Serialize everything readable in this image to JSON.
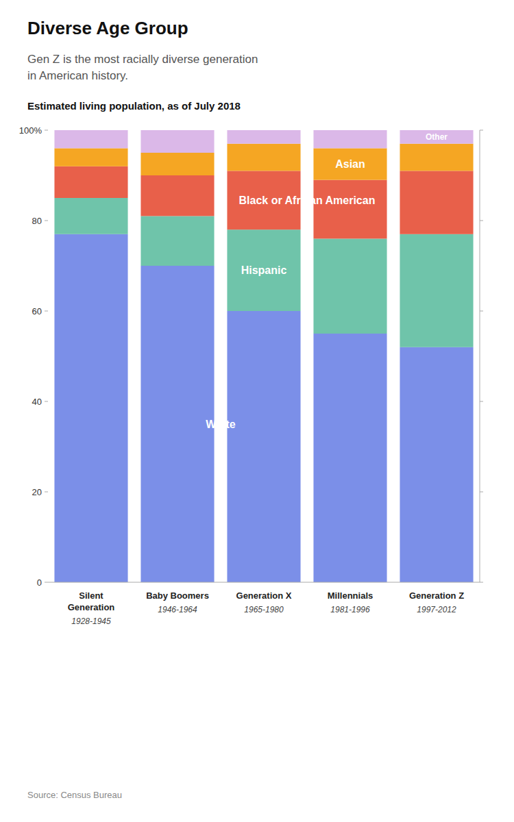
{
  "chart_data": {
    "type": "bar",
    "stacked": true,
    "title": "Diverse Age Group",
    "subtitle": "Gen Z is the most racially diverse generation\nin American history.",
    "annotations": [
      "Estimated living population, as of July 2018",
      "Source: Census Bureau"
    ],
    "categories": [
      "Silent\nGeneration\n1928-1945",
      "Baby Boomers\n1946-1964",
      "Generation X\n1965-1980",
      "Millennials\n1981-1996",
      "Generation Z\n1997-2012"
    ],
    "series": [
      {
        "name": "White",
        "color": "#7b8fe8",
        "values": [
          77,
          70,
          60,
          55,
          52
        ]
      },
      {
        "name": "Hispanic",
        "color": "#6fc4aa",
        "values": [
          8,
          11,
          18,
          21,
          25
        ]
      },
      {
        "name": "Black or African American",
        "color": "#e8604a",
        "values": [
          7,
          9,
          13,
          13,
          14
        ]
      },
      {
        "name": "Asian",
        "color": "#f5a623",
        "values": [
          4,
          5,
          6,
          7,
          6
        ]
      },
      {
        "name": "Other",
        "color": "#dbb8e8",
        "values": [
          4,
          5,
          3,
          4,
          3
        ]
      }
    ],
    "ylim": [
      0,
      100
    ],
    "yticks": [
      0,
      20,
      40,
      60,
      80,
      {
        "value": 100,
        "label": "100%"
      }
    ]
  }
}
